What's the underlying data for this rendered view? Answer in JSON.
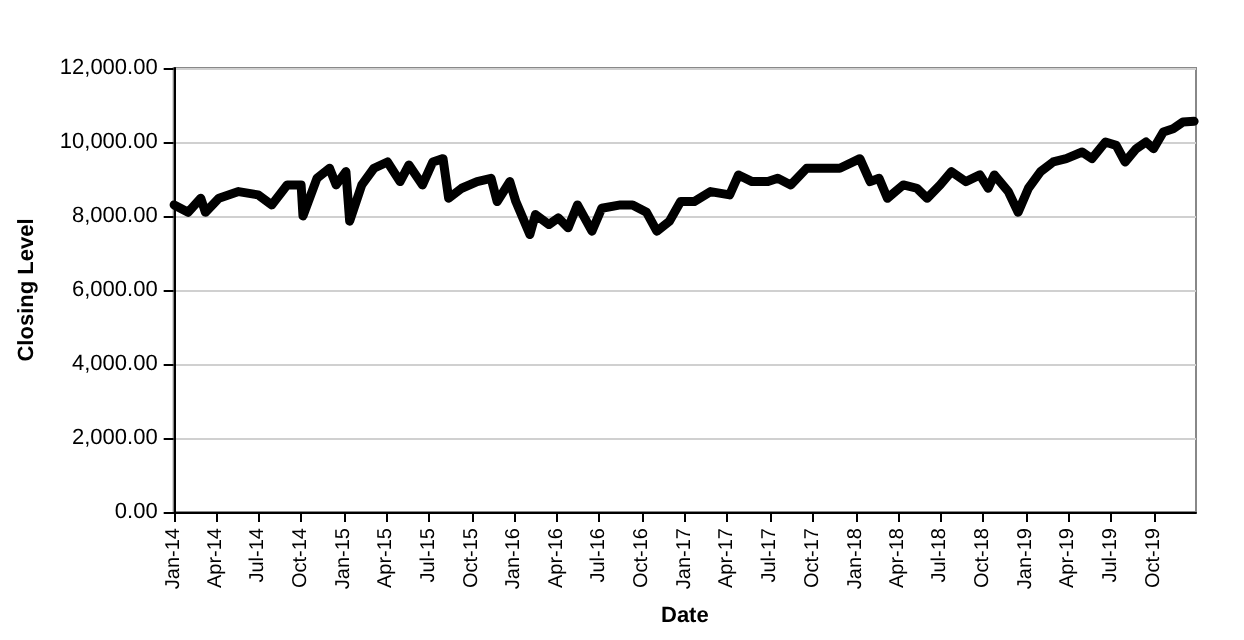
{
  "chart_data": {
    "type": "line",
    "xlabel": "Date",
    "ylabel": "Closing Level",
    "x": [
      "2014-01-02",
      "2014-02-01",
      "2014-02-28",
      "2014-03-10",
      "2014-04-08",
      "2014-05-20",
      "2014-07-01",
      "2014-07-30",
      "2014-09-01",
      "2014-10-01",
      "2014-10-05",
      "2014-11-04",
      "2014-12-01",
      "2014-12-15",
      "2015-01-05",
      "2015-01-13",
      "2015-02-08",
      "2015-03-06",
      "2015-04-04",
      "2015-05-01",
      "2015-05-20",
      "2015-06-18",
      "2015-07-10",
      "2015-08-01",
      "2015-08-13",
      "2015-09-10",
      "2015-10-13",
      "2015-11-12",
      "2015-11-25",
      "2015-12-22",
      "2016-01-04",
      "2016-02-03",
      "2016-02-15",
      "2016-03-15",
      "2016-04-04",
      "2016-04-25",
      "2016-05-15",
      "2016-06-15",
      "2016-07-06",
      "2016-08-15",
      "2016-09-10",
      "2016-10-10",
      "2016-11-01",
      "2016-11-28",
      "2016-12-22",
      "2017-01-20",
      "2017-02-24",
      "2017-04-06",
      "2017-04-25",
      "2017-05-24",
      "2017-06-27",
      "2017-07-18",
      "2017-08-15",
      "2017-09-18",
      "2017-11-01",
      "2017-11-28",
      "2018-01-10",
      "2018-02-01",
      "2018-02-20",
      "2018-03-10",
      "2018-04-13",
      "2018-05-12",
      "2018-06-03",
      "2018-07-01",
      "2018-07-25",
      "2018-08-25",
      "2018-09-24",
      "2018-10-12",
      "2018-10-25",
      "2018-11-24",
      "2018-12-15",
      "2019-01-06",
      "2019-02-01",
      "2019-02-28",
      "2019-03-28",
      "2019-05-01",
      "2019-05-22",
      "2019-06-20",
      "2019-07-13",
      "2019-08-01",
      "2019-08-25",
      "2019-09-15",
      "2019-10-01",
      "2019-10-22",
      "2019-11-12",
      "2019-12-03",
      "2019-12-27"
    ],
    "series": [
      {
        "color": "#000000",
        "values": [
          8300,
          8100,
          8480,
          8100,
          8480,
          8660,
          8570,
          8300,
          8840,
          8840,
          8000,
          9020,
          9290,
          8840,
          9200,
          7860,
          8840,
          9290,
          9460,
          8930,
          9380,
          8840,
          9460,
          9550,
          8480,
          8750,
          8930,
          9020,
          8390,
          8930,
          8390,
          7500,
          8040,
          7770,
          7950,
          7680,
          8300,
          7590,
          8210,
          8300,
          8300,
          8100,
          7590,
          7860,
          8390,
          8390,
          8660,
          8570,
          9110,
          8930,
          8930,
          9020,
          8840,
          9290,
          9290,
          9290,
          9550,
          8930,
          9020,
          8480,
          8840,
          8750,
          8480,
          8840,
          9200,
          8930,
          9110,
          8750,
          9110,
          8660,
          8100,
          8750,
          9200,
          9460,
          9550,
          9730,
          9550,
          10000,
          9910,
          9460,
          9820,
          10000,
          9820,
          10270,
          10360,
          10540,
          10560
        ]
      }
    ],
    "xlim": [
      "2014-01-01",
      "2019-12-31"
    ],
    "xticks": [
      {
        "value": "2014-01-01",
        "label": "Jan-14"
      },
      {
        "value": "2014-04-01",
        "label": "Apr-14"
      },
      {
        "value": "2014-07-01",
        "label": "Jul-14"
      },
      {
        "value": "2014-10-01",
        "label": "Oct-14"
      },
      {
        "value": "2015-01-01",
        "label": "Jan-15"
      },
      {
        "value": "2015-04-01",
        "label": "Apr-15"
      },
      {
        "value": "2015-07-01",
        "label": "Jul-15"
      },
      {
        "value": "2015-10-01",
        "label": "Oct-15"
      },
      {
        "value": "2016-01-01",
        "label": "Jan-16"
      },
      {
        "value": "2016-04-01",
        "label": "Apr-16"
      },
      {
        "value": "2016-07-01",
        "label": "Jul-16"
      },
      {
        "value": "2016-10-01",
        "label": "Oct-16"
      },
      {
        "value": "2017-01-01",
        "label": "Jan-17"
      },
      {
        "value": "2017-04-01",
        "label": "Apr-17"
      },
      {
        "value": "2017-07-01",
        "label": "Jul-17"
      },
      {
        "value": "2017-10-01",
        "label": "Oct-17"
      },
      {
        "value": "2018-01-01",
        "label": "Jan-18"
      },
      {
        "value": "2018-04-01",
        "label": "Apr-18"
      },
      {
        "value": "2018-07-01",
        "label": "Jul-18"
      },
      {
        "value": "2018-10-01",
        "label": "Oct-18"
      },
      {
        "value": "2019-01-01",
        "label": "Jan-19"
      },
      {
        "value": "2019-04-01",
        "label": "Apr-19"
      },
      {
        "value": "2019-07-01",
        "label": "Jul-19"
      },
      {
        "value": "2019-10-01",
        "label": "Oct-19"
      }
    ],
    "ylim": [
      0,
      12000
    ],
    "yticks": [
      {
        "value": 0,
        "label": "0.00"
      },
      {
        "value": 2000,
        "label": "2,000.00"
      },
      {
        "value": 4000,
        "label": "4,000.00"
      },
      {
        "value": 6000,
        "label": "6,000.00"
      },
      {
        "value": 8000,
        "label": "8,000.00"
      },
      {
        "value": 10000,
        "label": "10,000.00"
      },
      {
        "value": 12000,
        "label": "12,000.00"
      }
    ],
    "grid": "y",
    "marker": "none",
    "line_style": "solid"
  }
}
